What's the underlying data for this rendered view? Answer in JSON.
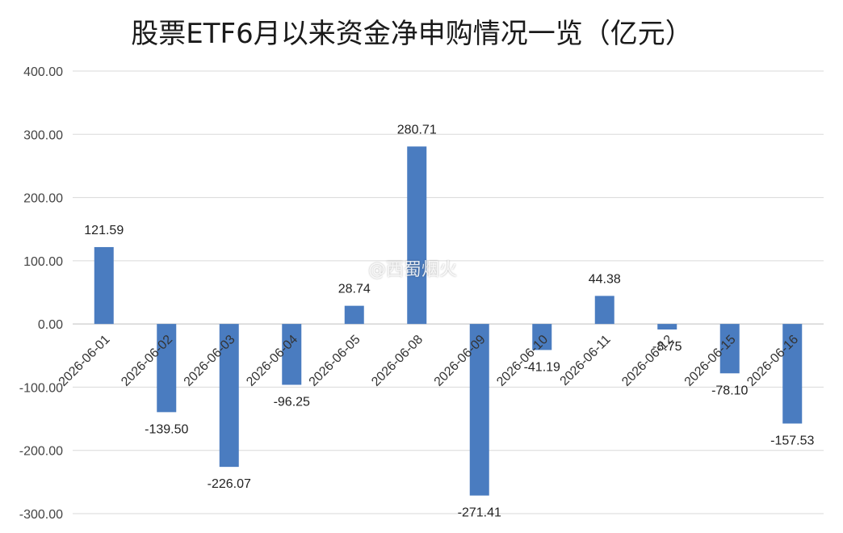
{
  "chart_data": {
    "type": "bar",
    "title": "股票ETF6月以来资金净申购情况一览（亿元）",
    "xlabel": "",
    "ylabel": "",
    "categories": [
      "2026-06-01",
      "2026-06-02",
      "2026-06-03",
      "2026-06-04",
      "2026-06-05",
      "2026-06-08",
      "2026-06-09",
      "2026-06-10",
      "2026-06-11",
      "2026-06-12",
      "2026-06-15",
      "2026-06-16"
    ],
    "values": [
      121.59,
      -139.5,
      -226.07,
      -96.25,
      28.74,
      280.71,
      -271.41,
      -41.19,
      44.38,
      -8.75,
      -78.1,
      -157.53
    ],
    "value_labels": [
      "121.59",
      "-139.50",
      "-226.07",
      "-96.25",
      "28.74",
      "280.71",
      "-271.41",
      "-41.19",
      "44.38",
      "-8.75",
      "-78.10",
      "-157.53"
    ],
    "ylim": [
      -300,
      400
    ],
    "yticks": [
      400,
      300,
      200,
      100,
      0,
      -100,
      -200,
      -300
    ],
    "ytick_labels": [
      "400.00",
      "300.00",
      "200.00",
      "100.00",
      "0.00",
      "-100.00",
      "-200.00",
      "-300.00"
    ],
    "grid": true,
    "legend": "none",
    "bar_color": "#4a7cc0"
  },
  "watermark": "@西蜀烟火"
}
